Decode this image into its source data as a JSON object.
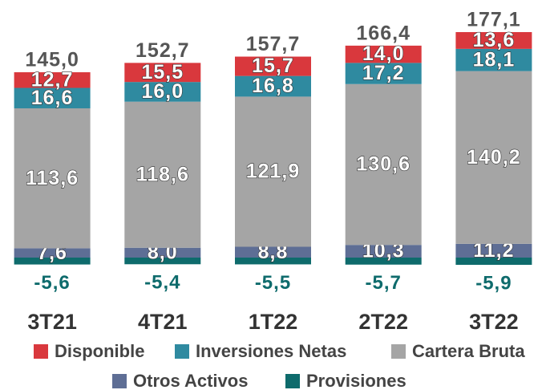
{
  "chart_data": {
    "type": "bar",
    "stacked": true,
    "categories": [
      "3T21",
      "4T21",
      "1T22",
      "2T22",
      "3T22"
    ],
    "series": [
      {
        "name": "Disponible",
        "color": "#d9383d",
        "values": [
          12.7,
          15.5,
          15.7,
          14.0,
          13.6
        ],
        "value_labels": [
          "12,7",
          "15,5",
          "15,7",
          "14,0",
          "13,6"
        ]
      },
      {
        "name": "Inversiones Netas",
        "color": "#2f8aa0",
        "values": [
          16.6,
          16.0,
          16.8,
          17.2,
          18.1
        ],
        "value_labels": [
          "16,6",
          "16,0",
          "16,8",
          "17,2",
          "18,1"
        ]
      },
      {
        "name": "Cartera Bruta",
        "color": "#a5a5a5",
        "values": [
          113.6,
          118.6,
          121.9,
          130.6,
          140.2
        ],
        "value_labels": [
          "113,6",
          "118,6",
          "121,9",
          "130,6",
          "140,2"
        ]
      },
      {
        "name": "Otros Activos",
        "color": "#5e6e95",
        "values": [
          7.6,
          8.0,
          8.8,
          10.3,
          11.2
        ],
        "value_labels": [
          "7,6",
          "8,0",
          "8,8",
          "10,3",
          "11,2"
        ]
      },
      {
        "name": "Provisiones",
        "color": "#0e6b6c",
        "values": [
          -5.6,
          -5.4,
          -5.5,
          -5.7,
          -5.9
        ],
        "value_labels": [
          "-5,6",
          "-5,4",
          "-5,5",
          "-5,7",
          "-5,9"
        ]
      }
    ],
    "totals": [
      145.0,
      152.7,
      157.7,
      166.4,
      177.1
    ],
    "total_labels": [
      "145,0",
      "152,7",
      "157,7",
      "166,4",
      "177,1"
    ],
    "legend": "bottom"
  }
}
